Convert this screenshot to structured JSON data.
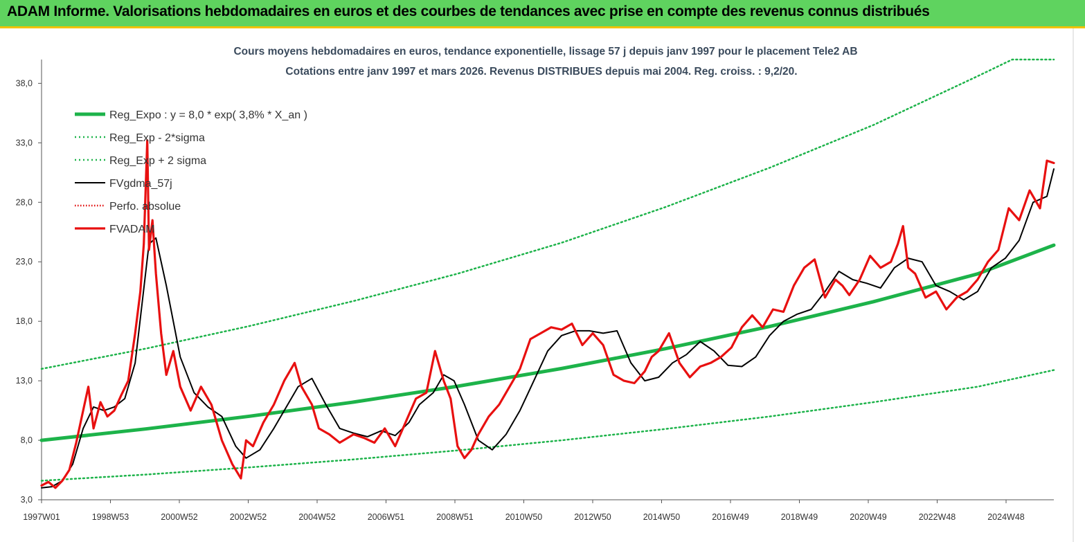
{
  "banner": {
    "title": "ADAM Informe. Valorisations hebdomadaires en euros et des courbes de tendances avec prise en compte des revenus connus distribués"
  },
  "chart_data": {
    "type": "line",
    "title_lines": [
      "Cours moyens  hebdomadaires en euros, tendance exponentielle, lissage 57 j depuis janv 1997  pour le placement Tele2 AB",
      "Cotations entre janv 1997 et mars 2026. Revenus  DISTRIBUES depuis mai 2004. Reg. croiss. : 9,2/20."
    ],
    "x_tick_labels": [
      "1997W01",
      "1998W53",
      "2000W52",
      "2002W52",
      "2004W52",
      "2006W51",
      "2008W51",
      "2010W50",
      "2012W50",
      "2014W50",
      "2016W49",
      "2018W49",
      "2020W49",
      "2022W48",
      "2024W48"
    ],
    "y_tick_labels": [
      "3,0",
      "8,0",
      "13,0",
      "18,0",
      "23,0",
      "28,0",
      "33,0",
      "38,0"
    ],
    "y_ticks": [
      3,
      8,
      13,
      18,
      23,
      28,
      33,
      38
    ],
    "x_range": [
      1997.0,
      2026.2
    ],
    "y_range": [
      3,
      40.0
    ],
    "grid": false,
    "legend_position": "top-left",
    "series": [
      {
        "name": "Reg_Expo : y = 8,0 * exp( 3,8% *  X_an )",
        "color": "#1db34a",
        "style": "solid-thick",
        "x": [
          1997.0,
          2000.0,
          2003.0,
          2006.0,
          2009.0,
          2012.0,
          2015.0,
          2018.0,
          2021.0,
          2024.0,
          2026.2
        ],
        "values": [
          8.0,
          8.95,
          10.02,
          11.21,
          12.54,
          14.03,
          15.7,
          17.56,
          19.65,
          21.98,
          24.4
        ]
      },
      {
        "name": "Reg_Exp - 2*sigma",
        "color": "#1db34a",
        "style": "dotted",
        "x": [
          1997.0,
          2000.0,
          2003.0,
          2006.0,
          2009.0,
          2012.0,
          2015.0,
          2018.0,
          2021.0,
          2024.0,
          2026.2
        ],
        "values": [
          4.6,
          5.12,
          5.72,
          6.39,
          7.15,
          8.0,
          8.95,
          10.0,
          11.2,
          12.5,
          13.9
        ]
      },
      {
        "name": "Reg_Exp + 2 sigma",
        "color": "#1db34a",
        "style": "dotted",
        "x": [
          1997.0,
          2000.0,
          2003.0,
          2006.0,
          2009.0,
          2012.0,
          2015.0,
          2018.0,
          2021.0,
          2024.0,
          2025.0,
          2026.2
        ],
        "values": [
          14.0,
          15.7,
          17.6,
          19.7,
          22.0,
          24.6,
          27.6,
          30.9,
          34.5,
          38.6,
          40.0,
          40.0
        ]
      },
      {
        "name": "FVgdma_57j",
        "color": "#000000",
        "style": "solid",
        "x": [
          1997.0,
          1997.3,
          1997.6,
          1997.9,
          1998.2,
          1998.5,
          1998.8,
          1999.1,
          1999.4,
          1999.7,
          1999.9,
          2000.1,
          2000.3,
          2000.6,
          2001.0,
          2001.4,
          2001.8,
          2002.2,
          2002.6,
          2002.9,
          2003.3,
          2003.7,
          2004.0,
          2004.4,
          2004.8,
          2005.2,
          2005.6,
          2006.0,
          2006.4,
          2006.8,
          2007.2,
          2007.6,
          2007.9,
          2008.3,
          2008.6,
          2008.9,
          2009.2,
          2009.6,
          2010.0,
          2010.4,
          2010.8,
          2011.2,
          2011.6,
          2012.0,
          2012.4,
          2012.8,
          2013.2,
          2013.6,
          2014.0,
          2014.4,
          2014.8,
          2015.2,
          2015.6,
          2016.0,
          2016.4,
          2016.8,
          2017.2,
          2017.6,
          2018.0,
          2018.4,
          2018.8,
          2019.2,
          2019.6,
          2020.0,
          2020.4,
          2020.8,
          2021.2,
          2021.6,
          2022.0,
          2022.4,
          2022.8,
          2023.2,
          2023.6,
          2024.0,
          2024.4,
          2024.8,
          2025.2,
          2025.6,
          2026.0,
          2026.2
        ],
        "values": [
          4.0,
          4.1,
          4.6,
          6.0,
          9.0,
          10.8,
          10.5,
          10.8,
          11.5,
          14.5,
          19.5,
          24.5,
          25.0,
          21.0,
          15.0,
          12.0,
          10.8,
          10.0,
          7.5,
          6.5,
          7.2,
          9.0,
          10.5,
          12.5,
          13.2,
          11.0,
          9.0,
          8.6,
          8.3,
          8.8,
          8.4,
          9.5,
          11.0,
          12.0,
          13.5,
          13.0,
          11.0,
          8.0,
          7.2,
          8.5,
          10.5,
          13.0,
          15.5,
          16.8,
          17.2,
          17.2,
          17.0,
          17.2,
          14.5,
          13.0,
          13.3,
          14.5,
          15.2,
          16.3,
          15.5,
          14.3,
          14.2,
          15.0,
          16.8,
          18.0,
          18.6,
          19.0,
          20.5,
          22.2,
          21.5,
          21.2,
          20.8,
          22.5,
          23.3,
          23.0,
          21.0,
          20.5,
          19.8,
          20.5,
          22.5,
          23.3,
          24.8,
          28.0,
          28.5,
          30.8
        ]
      },
      {
        "name": "Perfo. absolue",
        "color": "#e00000",
        "style": "dotted",
        "x": [],
        "values": []
      },
      {
        "name": "FVADAM",
        "color": "#e81010",
        "style": "solid-thick",
        "x": [
          1997.0,
          1997.2,
          1997.4,
          1997.6,
          1997.8,
          1998.0,
          1998.2,
          1998.35,
          1998.5,
          1998.7,
          1998.9,
          1999.1,
          1999.3,
          1999.5,
          1999.7,
          1999.85,
          1999.95,
          2000.05,
          2000.1,
          2000.2,
          2000.3,
          2000.45,
          2000.6,
          2000.8,
          2001.0,
          2001.3,
          2001.6,
          2001.9,
          2002.2,
          2002.5,
          2002.75,
          2002.9,
          2003.1,
          2003.4,
          2003.7,
          2004.0,
          2004.3,
          2004.5,
          2004.8,
          2005.0,
          2005.3,
          2005.6,
          2006.0,
          2006.3,
          2006.6,
          2006.9,
          2007.2,
          2007.5,
          2007.8,
          2008.1,
          2008.35,
          2008.6,
          2008.8,
          2009.0,
          2009.2,
          2009.4,
          2009.6,
          2009.9,
          2010.2,
          2010.5,
          2010.8,
          2011.1,
          2011.4,
          2011.7,
          2012.0,
          2012.3,
          2012.6,
          2012.9,
          2013.2,
          2013.5,
          2013.8,
          2014.1,
          2014.4,
          2014.6,
          2014.8,
          2015.1,
          2015.4,
          2015.7,
          2016.0,
          2016.3,
          2016.6,
          2016.9,
          2017.2,
          2017.5,
          2017.8,
          2018.1,
          2018.4,
          2018.7,
          2019.0,
          2019.3,
          2019.6,
          2019.9,
          2020.1,
          2020.3,
          2020.6,
          2020.9,
          2021.2,
          2021.5,
          2021.7,
          2021.85,
          2022.0,
          2022.2,
          2022.5,
          2022.8,
          2023.1,
          2023.4,
          2023.7,
          2024.0,
          2024.3,
          2024.6,
          2024.9,
          2025.2,
          2025.5,
          2025.8,
          2026.0,
          2026.2
        ],
        "values": [
          4.2,
          4.5,
          4.0,
          4.6,
          5.5,
          7.8,
          10.5,
          12.5,
          9.0,
          11.2,
          10.0,
          10.5,
          11.8,
          13.0,
          17.0,
          20.5,
          24.5,
          33.2,
          24.0,
          26.5,
          22.0,
          17.0,
          13.5,
          15.5,
          12.5,
          10.5,
          12.5,
          11.0,
          8.0,
          6.0,
          4.8,
          8.0,
          7.5,
          9.5,
          11.0,
          13.0,
          14.5,
          12.5,
          11.0,
          9.0,
          8.5,
          7.8,
          8.5,
          8.2,
          7.8,
          9.0,
          7.5,
          9.5,
          11.5,
          12.0,
          15.5,
          13.0,
          11.5,
          7.5,
          6.5,
          7.2,
          8.5,
          10.0,
          11.0,
          12.5,
          14.0,
          16.5,
          17.0,
          17.5,
          17.3,
          17.8,
          16.0,
          17.0,
          16.0,
          13.5,
          13.0,
          12.8,
          13.8,
          15.0,
          15.5,
          17.0,
          14.5,
          13.3,
          14.2,
          14.5,
          15.0,
          15.8,
          17.5,
          18.5,
          17.5,
          19.0,
          18.8,
          21.0,
          22.5,
          23.2,
          20.0,
          21.5,
          21.0,
          20.2,
          21.5,
          23.5,
          22.5,
          23.0,
          24.5,
          26.0,
          22.5,
          22.0,
          20.0,
          20.5,
          19.0,
          20.0,
          20.5,
          21.5,
          23.0,
          24.0,
          27.5,
          26.5,
          29.0,
          27.5,
          31.5,
          31.3
        ]
      }
    ]
  }
}
